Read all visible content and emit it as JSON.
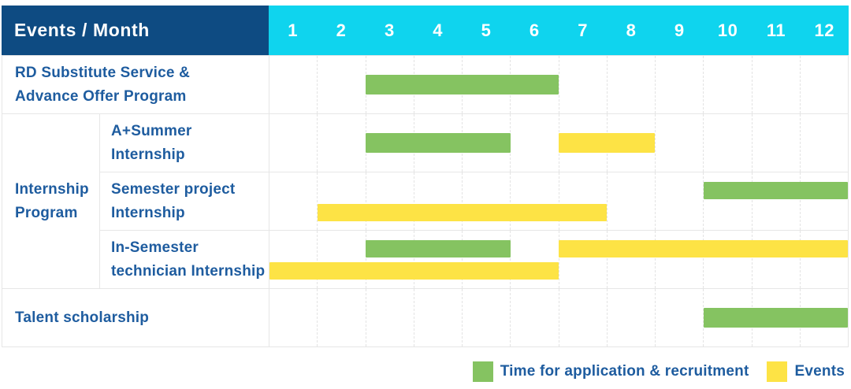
{
  "header": {
    "title": "Events / Month",
    "months": [
      "1",
      "2",
      "3",
      "4",
      "5",
      "6",
      "7",
      "8",
      "9",
      "10",
      "11",
      "12"
    ]
  },
  "colors": {
    "navy": "#0e4b82",
    "cyan": "#0fd4ee",
    "green": "#85c361",
    "yellow": "#fde345",
    "labelblue": "#1e5c9f",
    "grid": "#e6e6e6",
    "griddash": "#e3e3e3"
  },
  "group_column": {
    "label": "Internship Program"
  },
  "rows": [
    {
      "type": "full",
      "label": "RD Substitute Service &\nAdvance Offer Program",
      "bars": [
        {
          "color": "green",
          "start": 3,
          "end": 6,
          "lane": "single"
        }
      ]
    },
    {
      "type": "sub",
      "group": "Internship Program",
      "label": "A+Summer\nInternship",
      "bars": [
        {
          "color": "green",
          "start": 3,
          "end": 5,
          "lane": "single"
        },
        {
          "color": "yellow",
          "start": 7,
          "end": 8,
          "lane": "single"
        }
      ]
    },
    {
      "type": "sub",
      "group": "Internship Program",
      "label": "Semester project\nInternship",
      "bars": [
        {
          "color": "green",
          "start": 10,
          "end": 12,
          "lane": "top"
        },
        {
          "color": "yellow",
          "start": 2,
          "end": 7,
          "lane": "bottom"
        }
      ]
    },
    {
      "type": "sub",
      "group": "Internship Program",
      "label": "In-Semester\ntechnician Internship",
      "bars": [
        {
          "color": "green",
          "start": 3,
          "end": 5,
          "lane": "top"
        },
        {
          "color": "yellow",
          "start": 7,
          "end": 12,
          "lane": "top"
        },
        {
          "color": "yellow",
          "start": 1,
          "end": 6,
          "lane": "bottom"
        }
      ]
    },
    {
      "type": "full",
      "label": "Talent scholarship",
      "bars": [
        {
          "color": "green",
          "start": 10,
          "end": 12,
          "lane": "single"
        }
      ]
    }
  ],
  "legend": {
    "items": [
      {
        "label": "Time for application & recruitment",
        "color": "green"
      },
      {
        "label": "Events",
        "color": "yellow"
      }
    ]
  },
  "chart_data": {
    "type": "bar",
    "subtype": "gantt",
    "title": "Events / Month",
    "xlabel": "Month",
    "x_ticks": [
      1,
      2,
      3,
      4,
      5,
      6,
      7,
      8,
      9,
      10,
      11,
      12
    ],
    "x_range": [
      1,
      12
    ],
    "grid": true,
    "legend_position": "bottom-right",
    "legend": {
      "green": "Time for application & recruitment",
      "yellow": "Events"
    },
    "tasks": [
      {
        "event": "RD Substitute Service & Advance Offer Program",
        "group": null,
        "bars": [
          {
            "kind": "application_recruitment",
            "color": "green",
            "month_start": 3,
            "month_end": 6
          }
        ]
      },
      {
        "event": "A+Summer Internship",
        "group": "Internship Program",
        "bars": [
          {
            "kind": "application_recruitment",
            "color": "green",
            "month_start": 3,
            "month_end": 5
          },
          {
            "kind": "events",
            "color": "yellow",
            "month_start": 7,
            "month_end": 8
          }
        ]
      },
      {
        "event": "Semester project Internship",
        "group": "Internship Program",
        "bars": [
          {
            "kind": "application_recruitment",
            "color": "green",
            "month_start": 10,
            "month_end": 12
          },
          {
            "kind": "events",
            "color": "yellow",
            "month_start": 2,
            "month_end": 7
          }
        ]
      },
      {
        "event": "In-Semester technician Internship",
        "group": "Internship Program",
        "bars": [
          {
            "kind": "application_recruitment",
            "color": "green",
            "month_start": 3,
            "month_end": 5
          },
          {
            "kind": "events",
            "color": "yellow",
            "month_start": 7,
            "month_end": 12
          },
          {
            "kind": "events",
            "color": "yellow",
            "month_start": 1,
            "month_end": 6
          }
        ]
      },
      {
        "event": "Talent scholarship",
        "group": null,
        "bars": [
          {
            "kind": "application_recruitment",
            "color": "green",
            "month_start": 10,
            "month_end": 12
          }
        ]
      }
    ]
  }
}
